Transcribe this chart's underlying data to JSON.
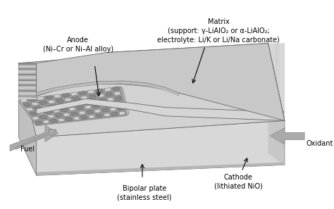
{
  "labels": {
    "matrix": "Matrix\n(support: γ-LiAlO₂ or α-LiAlO₂;\nelectrolyte: Li/K or Li/Na carbonate)",
    "anode": "Anode\n(Ni–Cr or Ni–Al alloy)",
    "fuel": "Fuel",
    "bipolar": "Bipolar plate\n(stainless steel)",
    "cathode": "Cathode\n(lithiated NiO)",
    "oxidant": "Oxidant"
  },
  "colors": {
    "top_face": "#d2d2d2",
    "top_face2": "#c8c8c8",
    "side_face_right": "#b8b8b8",
    "front_face": "#d8d8d8",
    "left_face": "#c0c0c0",
    "interior_floor": "#c0c0c0",
    "corrugated_bg": "#999999",
    "corrugated_light": "#b8b8b8",
    "corrugated_dark": "#707070",
    "ridge_light": "#d0d0d0",
    "ridge_dark": "#b0b0b0",
    "wave_surface": "#d5d5d5",
    "fuel_arrow": "#aaaaaa",
    "oxidant_arrow": "#aaaaaa",
    "text_color": "#000000",
    "edge_color": "#666666",
    "white": "#ffffff"
  }
}
